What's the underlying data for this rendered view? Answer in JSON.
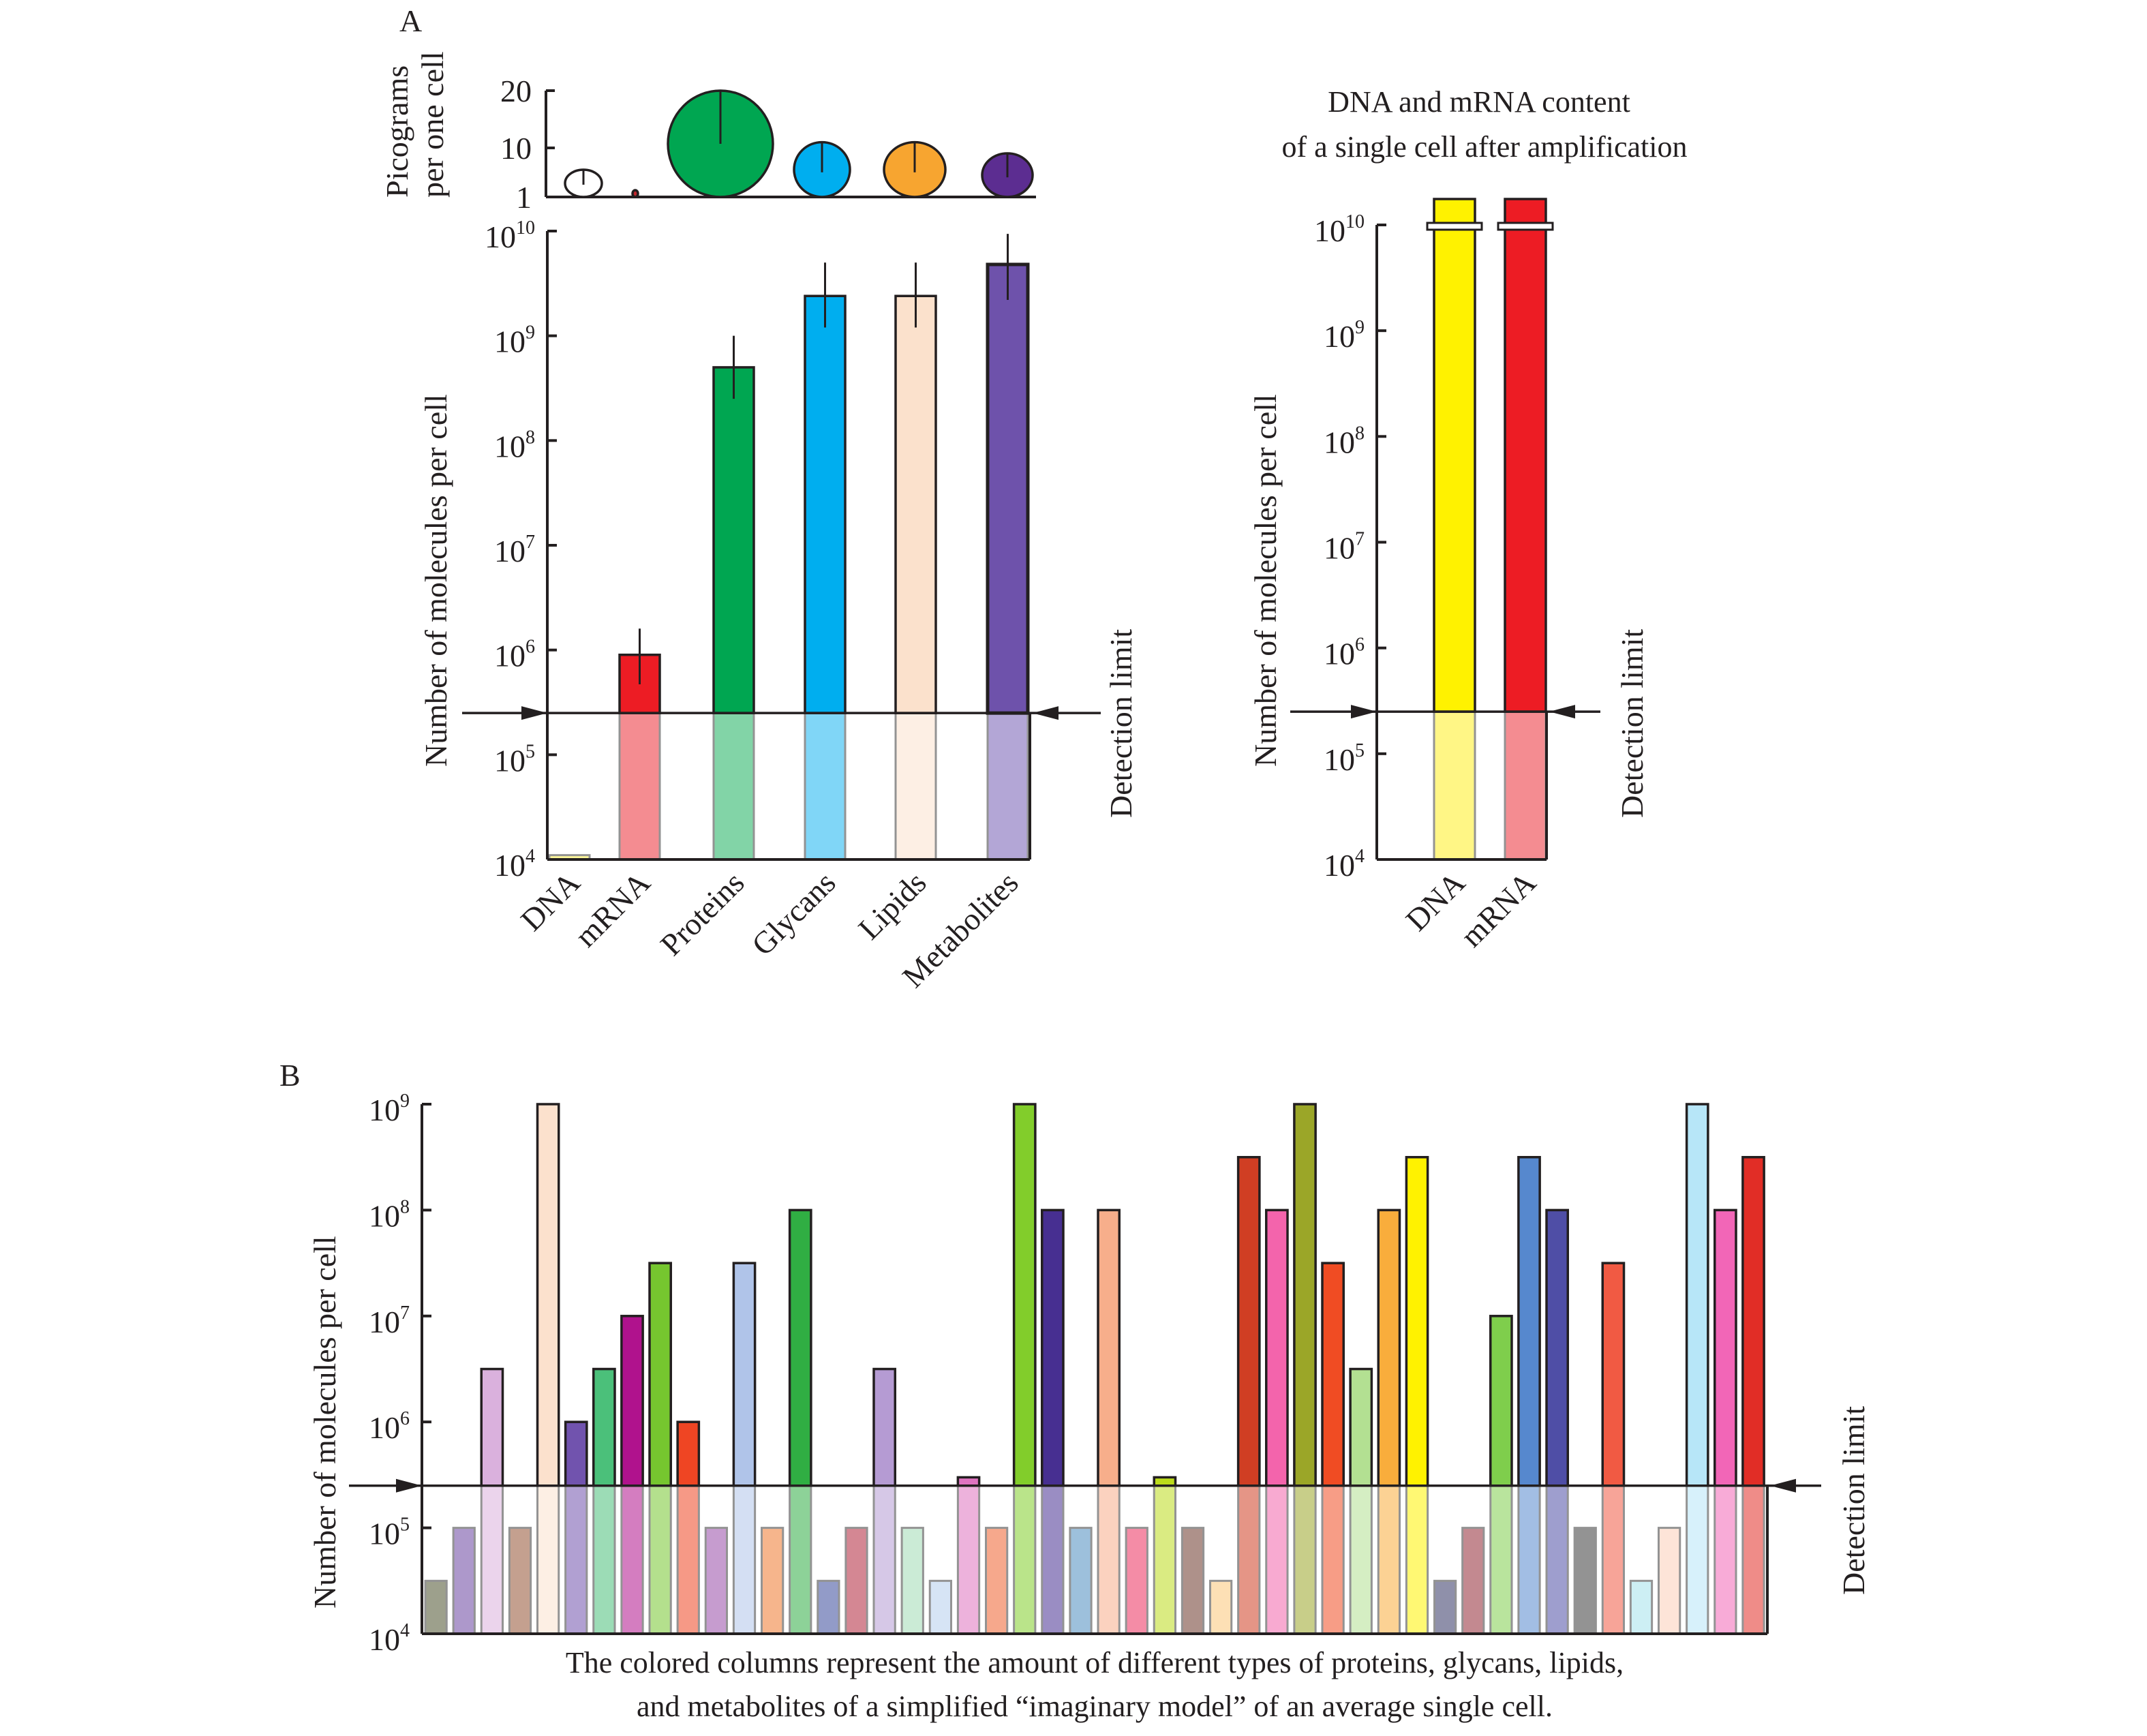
{
  "chart_data": [
    {
      "id": "A-picograms",
      "panel": "A",
      "type": "bubble",
      "title": "",
      "ylabel": "Picograms per one cell",
      "ylabel_lines": [
        "Picograms",
        "per one cell"
      ],
      "yticks": [
        "20",
        "10",
        "1"
      ],
      "ytick_values": [
        20,
        10,
        1
      ],
      "categories": [
        "DNA",
        "mRNA",
        "Proteins",
        "Glycans",
        "Lipids",
        "Metabolites"
      ],
      "values": [
        6,
        0.3,
        20,
        11,
        11,
        9
      ],
      "colors": [
        "#ffffff",
        "#c1272d",
        "#00a651",
        "#00aeef",
        "#f7a530",
        "#5c2d91"
      ]
    },
    {
      "id": "A-molecules",
      "panel": "A",
      "type": "bar",
      "title": "",
      "ylabel": "Number of molecules per cell",
      "yscale": "log",
      "ylim": [
        10000,
        10000000000
      ],
      "yticks": [
        {
          "base": "10",
          "exp": "10",
          "value": 10000000000
        },
        {
          "base": "10",
          "exp": "9",
          "value": 1000000000
        },
        {
          "base": "10",
          "exp": "8",
          "value": 100000000
        },
        {
          "base": "10",
          "exp": "7",
          "value": 10000000
        },
        {
          "base": "10",
          "exp": "6",
          "value": 1000000
        },
        {
          "base": "10",
          "exp": "5",
          "value": 100000
        },
        {
          "base": "10",
          "exp": "4",
          "value": 10000
        }
      ],
      "categories": [
        "DNA",
        "mRNA",
        "Proteins",
        "Glycans",
        "Lipids",
        "Metabolites"
      ],
      "values": [
        11000,
        900000,
        500000000,
        2400000000,
        2400000000,
        4800000000
      ],
      "error_low": [
        null,
        470000,
        250000000,
        1200000000,
        1200000000,
        2200000000
      ],
      "error_high": [
        null,
        1600000,
        1000000000,
        5000000000,
        5000000000,
        9400000000
      ],
      "colors": [
        "#fff799",
        "#ed1c24",
        "#00a651",
        "#00aeef",
        "#fbe1cc",
        "#6e52ab"
      ],
      "faded_colors": [
        "#fff799",
        "#f48c91",
        "#82d4a7",
        "#80d6f7",
        "#fdefe4",
        "#b3a6d6"
      ],
      "detection_limit": 250000,
      "detection_label": "Detection limit"
    },
    {
      "id": "A-amplified",
      "panel": "A",
      "type": "bar",
      "title": "DNA and mRNA content of a single cell after amplification",
      "title_lines": [
        "DNA and mRNA content",
        "of a single cell after amplification"
      ],
      "ylabel": "Number of molecules per cell",
      "yscale": "log",
      "ylim": [
        10000,
        10000000000
      ],
      "axis_break": true,
      "yticks": [
        {
          "base": "10",
          "exp": "10",
          "value": 10000000000
        },
        {
          "base": "10",
          "exp": "9",
          "value": 1000000000
        },
        {
          "base": "10",
          "exp": "8",
          "value": 100000000
        },
        {
          "base": "10",
          "exp": "7",
          "value": 10000000
        },
        {
          "base": "10",
          "exp": "6",
          "value": 1000000
        },
        {
          "base": "10",
          "exp": "5",
          "value": 100000
        },
        {
          "base": "10",
          "exp": "4",
          "value": 10000
        }
      ],
      "categories": [
        "DNA",
        "mRNA"
      ],
      "values": [
        ">1e10",
        ">1e10"
      ],
      "colors": [
        "#fff200",
        "#ed1c24"
      ],
      "faded_colors": [
        "#fff685",
        "#f48c91"
      ],
      "detection_limit": 250000,
      "detection_label": "Detection limit"
    },
    {
      "id": "B-model",
      "panel": "B",
      "type": "bar",
      "title": "",
      "ylabel": "Number of molecules per cell",
      "yscale": "log",
      "ylim": [
        10000,
        1000000000
      ],
      "yticks": [
        {
          "base": "10",
          "exp": "9",
          "value": 1000000000
        },
        {
          "base": "10",
          "exp": "8",
          "value": 100000000
        },
        {
          "base": "10",
          "exp": "7",
          "value": 10000000
        },
        {
          "base": "10",
          "exp": "6",
          "value": 1000000
        },
        {
          "base": "10",
          "exp": "5",
          "value": 100000
        },
        {
          "base": "10",
          "exp": "4",
          "value": 10000
        }
      ],
      "detection_limit": 250000,
      "detection_label": "Detection limit",
      "values": [
        31600,
        100000,
        3160000,
        100000,
        1000000000,
        1000000,
        3160000,
        10000000,
        31600000,
        1000000,
        100000,
        31600000,
        100000,
        100000000,
        31600,
        100000,
        3160000,
        100000,
        31600,
        300000,
        100000,
        1000000000,
        100000000,
        100000,
        100000000,
        100000,
        300000,
        100000,
        31600,
        316000000,
        100000000,
        1000000000,
        31600000,
        3160000,
        100000000,
        316000000,
        31600,
        100000,
        10000000,
        316000000,
        100000000,
        100000,
        31600000,
        31600,
        100000,
        1000000000,
        100000000,
        316000000
      ],
      "colors": [
        "#9da08c",
        "#ad98cb",
        "#dab1dd",
        "#c4a08f",
        "#fce1cd",
        "#7153ae",
        "#4bc07a",
        "#b0128d",
        "#76c62f",
        "#ef4523",
        "#c69ccf",
        "#b0c4e9",
        "#f6b58c",
        "#30ae43",
        "#929bc8",
        "#d48793",
        "#b59bd3",
        "#cbebd6",
        "#d6e4f5",
        "#df73c0",
        "#f6a88c",
        "#82cd2b",
        "#472f91",
        "#9dc0dc",
        "#f7ae8b",
        "#f48ca6",
        "#bbdb1b",
        "#ae918a",
        "#fde0b5",
        "#d03e23",
        "#f364ac",
        "#9ba628",
        "#f04c23",
        "#b3e092",
        "#f9ad3c",
        "#fff200",
        "#8f90aa",
        "#c38990",
        "#7fce4c",
        "#5688ce",
        "#4f4ea6",
        "#939393",
        "#f15a43",
        "#cdeff4",
        "#fde4d8",
        "#b7e6f8",
        "#f266b7",
        "#e12d26"
      ],
      "caption": "The colored columns represent the amount of different types of proteins, glycans, lipids, and metabolites of a simplified “imaginary model” of an average single cell.",
      "caption_lines": [
        "The colored columns represent the amount of different types of proteins, glycans, lipids,",
        "and metabolites of a simplified “imaginary model” of an average single cell."
      ]
    }
  ],
  "labels": {
    "panel_a": "A",
    "panel_b": "B"
  }
}
